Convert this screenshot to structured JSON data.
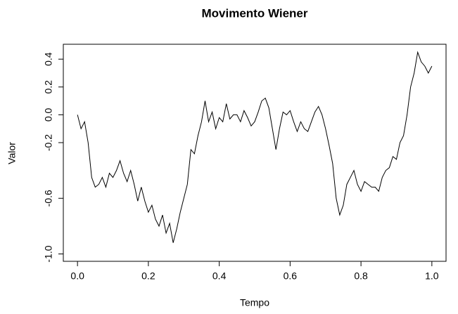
{
  "chart_data": {
    "type": "line",
    "title": "Movimento Wiener",
    "x_label": "Tempo",
    "y_label": "Valor",
    "x": [
      0,
      0.01,
      0.02,
      0.03,
      0.04,
      0.05,
      0.06,
      0.07,
      0.08,
      0.09,
      0.1,
      0.11,
      0.12,
      0.13,
      0.14,
      0.15,
      0.16,
      0.17,
      0.18,
      0.19,
      0.2,
      0.21,
      0.22,
      0.23,
      0.24,
      0.25,
      0.26,
      0.27,
      0.28,
      0.29,
      0.3,
      0.31,
      0.32,
      0.33,
      0.34,
      0.35,
      0.36,
      0.37,
      0.38,
      0.39,
      0.4,
      0.41,
      0.42,
      0.43,
      0.44,
      0.45,
      0.46,
      0.47,
      0.48,
      0.49,
      0.5,
      0.51,
      0.52,
      0.53,
      0.54,
      0.55,
      0.56,
      0.57,
      0.58,
      0.59,
      0.6,
      0.61,
      0.62,
      0.63,
      0.64,
      0.65,
      0.66,
      0.67,
      0.68,
      0.69,
      0.7,
      0.71,
      0.72,
      0.73,
      0.74,
      0.75,
      0.76,
      0.77,
      0.78,
      0.79,
      0.8,
      0.81,
      0.82,
      0.83,
      0.84,
      0.85,
      0.86,
      0.87,
      0.88,
      0.89,
      0.9,
      0.91,
      0.92,
      0.93,
      0.94,
      0.95,
      0.96,
      0.97,
      0.98,
      0.99,
      1
    ],
    "series": [
      {
        "color": "#000000",
        "values": [
          0,
          -0.1,
          -0.05,
          -0.2,
          -0.45,
          -0.52,
          -0.5,
          -0.45,
          -0.52,
          -0.42,
          -0.45,
          -0.4,
          -0.33,
          -0.42,
          -0.48,
          -0.4,
          -0.5,
          -0.62,
          -0.52,
          -0.62,
          -0.7,
          -0.65,
          -0.75,
          -0.8,
          -0.72,
          -0.85,
          -0.78,
          -0.92,
          -0.82,
          -0.7,
          -0.6,
          -0.5,
          -0.25,
          -0.28,
          -0.15,
          -0.05,
          0.1,
          -0.05,
          0.02,
          -0.1,
          -0.02,
          -0.05,
          0.08,
          -0.03,
          0,
          0,
          -0.05,
          0.03,
          -0.02,
          -0.08,
          -0.05,
          0.02,
          0.1,
          0.12,
          0.05,
          -0.1,
          -0.25,
          -0.1,
          0.02,
          0,
          0.03,
          -0.05,
          -0.12,
          -0.05,
          -0.1,
          -0.12,
          -0.05,
          0.02,
          0.06,
          0,
          -0.1,
          -0.22,
          -0.35,
          -0.6,
          -0.72,
          -0.65,
          -0.5,
          -0.45,
          -0.4,
          -0.5,
          -0.55,
          -0.48,
          -0.5,
          -0.52,
          -0.52,
          -0.55,
          -0.45,
          -0.4,
          -0.38,
          -0.3,
          -0.32,
          -0.2,
          -0.15,
          0,
          0.2,
          0.3,
          0.45,
          0.38,
          0.35,
          0.3,
          0.35
        ]
      }
    ],
    "xlim": [
      -0.04,
      1.04
    ],
    "ylim": [
      -1.053,
      0.507
    ],
    "xticks": [
      {
        "value": 0,
        "label": "0.0"
      },
      0.2,
      0.4,
      0.6,
      0.8,
      {
        "value": 1,
        "label": "1.0"
      }
    ],
    "yticks": [
      {
        "value": -1,
        "label": "-1.0"
      },
      -0.6,
      -0.2,
      {
        "value": 0,
        "label": "0.0"
      },
      0.2,
      0.4
    ]
  }
}
